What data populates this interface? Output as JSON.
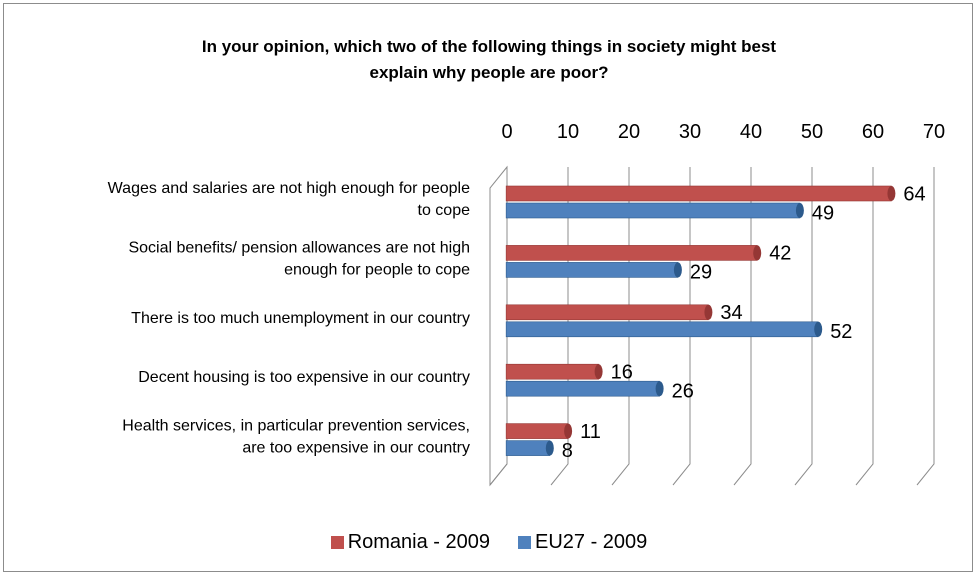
{
  "chart_data": {
    "type": "bar",
    "orientation": "horizontal",
    "title_lines": [
      "In your opinion, which two of the following things in society might best",
      "explain why people are poor?"
    ],
    "categories": [
      [
        "Wages and salaries are not high enough for people",
        "to cope"
      ],
      [
        "Social benefits/ pension allowances are not high",
        "enough for people to cope"
      ],
      [
        "There is too much unemployment in our country"
      ],
      [
        "Decent housing is too expensive in our country"
      ],
      [
        "Health services, in particular prevention services,",
        "are too expensive in our country"
      ]
    ],
    "series": [
      {
        "name": "Romania - 2009",
        "color": "#c0504d",
        "values": [
          64,
          42,
          34,
          16,
          11
        ]
      },
      {
        "name": "EU27 - 2009",
        "color": "#4f81bd",
        "values": [
          49,
          29,
          52,
          26,
          8
        ]
      }
    ],
    "x_ticks": [
      0,
      10,
      20,
      30,
      40,
      50,
      60,
      70
    ],
    "xlim": [
      0,
      70
    ],
    "axis_position": "top",
    "grid": true,
    "legend_position": "bottom",
    "style": "3d-cylinder"
  }
}
